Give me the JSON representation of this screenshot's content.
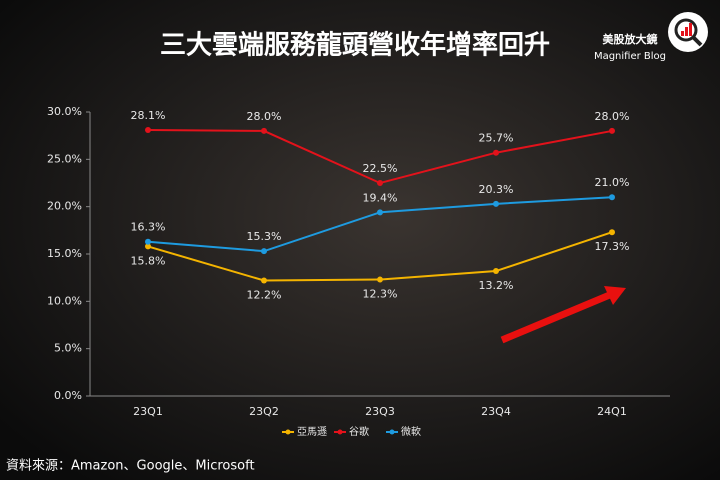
{
  "chart_data": {
    "type": "line",
    "title": "三大雲端服務龍頭營收年增率回升",
    "brand": "美股放大鏡",
    "brand_subtitle": "Magnifier Blog",
    "source": "資料來源：Amazon、Google、Microsoft",
    "categories": [
      "23Q1",
      "23Q2",
      "23Q3",
      "23Q4",
      "24Q1"
    ],
    "series": [
      {
        "name": "亞馬遜",
        "color": "#f4b400",
        "values": [
          15.8,
          12.2,
          12.3,
          13.2,
          17.3
        ],
        "value_labels": [
          "15.8%",
          "12.2%",
          "12.3%",
          "13.2%",
          "17.3%"
        ]
      },
      {
        "name": "谷歌",
        "color": "#e3121b",
        "values": [
          28.1,
          28.0,
          22.5,
          25.7,
          28.0
        ],
        "value_labels": [
          "28.1%",
          "28.0%",
          "22.5%",
          "25.7%",
          "28.0%"
        ]
      },
      {
        "name": "微軟",
        "color": "#1e9be0",
        "values": [
          16.3,
          15.3,
          19.4,
          20.3,
          21.0
        ],
        "value_labels": [
          "16.3%",
          "15.3%",
          "19.4%",
          "20.3%",
          "21.0%"
        ]
      }
    ],
    "ylim": [
      0,
      30
    ],
    "yticks": [
      {
        "value": 0,
        "label": "0.0%"
      },
      {
        "value": 5,
        "label": "5.0%"
      },
      {
        "value": 10,
        "label": "10.0%"
      },
      {
        "value": 15,
        "label": "15.0%"
      },
      {
        "value": 20,
        "label": "20.0%"
      },
      {
        "value": 25,
        "label": "25.0%"
      },
      {
        "value": 30,
        "label": "30.0%"
      }
    ],
    "legend": "bottom"
  }
}
